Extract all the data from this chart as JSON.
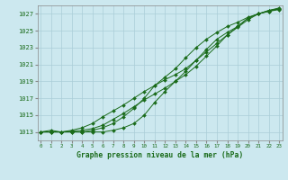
{
  "title": "Graphe pression niveau de la mer (hPa)",
  "xlabel_hours": [
    0,
    1,
    2,
    3,
    4,
    5,
    6,
    7,
    8,
    9,
    10,
    11,
    12,
    13,
    14,
    15,
    16,
    17,
    18,
    19,
    20,
    21,
    22,
    23
  ],
  "ylim": [
    1012.0,
    1028.0
  ],
  "yticks": [
    1013,
    1015,
    1017,
    1019,
    1021,
    1023,
    1025,
    1027
  ],
  "line_color": "#1a6b1a",
  "bg_color": "#cce8ef",
  "grid_color": "#aacdd8",
  "series": [
    [
      1013.0,
      1013.0,
      1013.0,
      1013.0,
      1013.0,
      1013.0,
      1013.0,
      1013.2,
      1013.5,
      1014.0,
      1015.0,
      1016.5,
      1017.8,
      1019.0,
      1020.2,
      1021.5,
      1022.8,
      1024.0,
      1024.8,
      1025.5,
      1026.5,
      1027.0,
      1027.3,
      1027.5
    ],
    [
      1013.0,
      1013.0,
      1013.0,
      1013.1,
      1013.2,
      1013.4,
      1013.8,
      1014.5,
      1015.2,
      1016.0,
      1016.8,
      1017.5,
      1018.2,
      1019.0,
      1019.8,
      1020.8,
      1022.0,
      1023.2,
      1024.5,
      1025.5,
      1026.5,
      1027.0,
      1027.4,
      1027.6
    ],
    [
      1013.0,
      1013.0,
      1013.0,
      1013.2,
      1013.5,
      1014.0,
      1014.8,
      1015.5,
      1016.2,
      1017.0,
      1017.8,
      1018.5,
      1019.2,
      1019.8,
      1020.5,
      1021.5,
      1022.5,
      1023.5,
      1024.5,
      1025.4,
      1026.3,
      1027.0,
      1027.4,
      1027.7
    ],
    [
      1013.0,
      1013.2,
      1013.0,
      1013.0,
      1013.0,
      1013.2,
      1013.5,
      1014.0,
      1014.8,
      1015.8,
      1017.0,
      1018.5,
      1019.5,
      1020.5,
      1021.8,
      1023.0,
      1024.0,
      1024.8,
      1025.5,
      1026.0,
      1026.6,
      1027.0,
      1027.3,
      1027.6
    ]
  ]
}
